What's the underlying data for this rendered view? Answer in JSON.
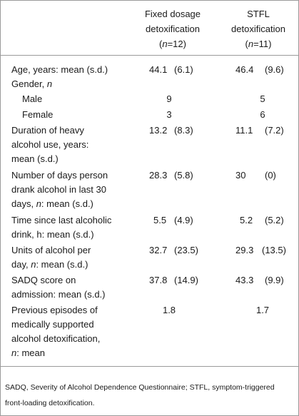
{
  "header": {
    "col1": {
      "line1": "Fixed dosage",
      "line2": "detoxification",
      "n_prefix": "(",
      "n_italic": "n",
      "n_suffix": "=12)"
    },
    "col2": {
      "line1": "STFL",
      "line2": "detoxification",
      "n_prefix": "(",
      "n_italic": "n",
      "n_suffix": "=11)"
    }
  },
  "rows": {
    "age": {
      "label": "Age, years: mean (s.d.)",
      "mean1": "44.1",
      "sd1": "(6.1)",
      "mean2": "46.4",
      "sd2": "(9.6)"
    },
    "gender": {
      "label_text": "Gender, ",
      "label_italic": "n"
    },
    "male": {
      "label": "Male",
      "value1": "9",
      "value2": "5"
    },
    "female": {
      "label": "Female",
      "value1": "3",
      "value2": "6"
    },
    "duration": {
      "line1": "Duration of heavy",
      "line2": "alcohol use, years:",
      "line3": "mean (s.d.)",
      "mean1": "13.2",
      "sd1": "(8.3)",
      "mean2": "11.1",
      "sd2": "(7.2)"
    },
    "days": {
      "line1": "Number of days person",
      "line2": "drank alcohol in last 30",
      "line3_italic": "n",
      "line3_rest": ": mean (s.d.)",
      "line3_prefix": "days, ",
      "mean1": "28.3",
      "sd1": "(5.8)",
      "mean2": "30",
      "sd2": "(0)"
    },
    "time": {
      "line1": "Time since last alcoholic",
      "line2": "drink, h: mean (s.d.)",
      "mean1": "5.5",
      "sd1": "(4.9)",
      "mean2": "5.2",
      "sd2": "(5.2)"
    },
    "units": {
      "line1": "Units of alcohol per",
      "line2": "day, ",
      "line2_italic": "n",
      "line2_rest": ": mean (s.d.)",
      "mean1": "32.7",
      "sd1": "(23.5)",
      "mean2": "29.3",
      "sd2": "(13.5)"
    },
    "sadq": {
      "line1": "SADQ score on",
      "line2": "admission: mean (s.d.)",
      "mean1": "37.8",
      "sd1": "(14.9)",
      "mean2": "43.3",
      "sd2": "(9.9)"
    },
    "previous": {
      "line1": "Previous episodes of",
      "line2": "medically supported",
      "line3": "alcohol detoxification,",
      "line4_italic": "n",
      "line4_rest": ": mean",
      "value1": "1.8",
      "value2": "1.7"
    }
  },
  "footnote": "SADQ, Severity of Alcohol Dependence Questionnaire; STFL, symptom-triggered front-loading detoxification."
}
